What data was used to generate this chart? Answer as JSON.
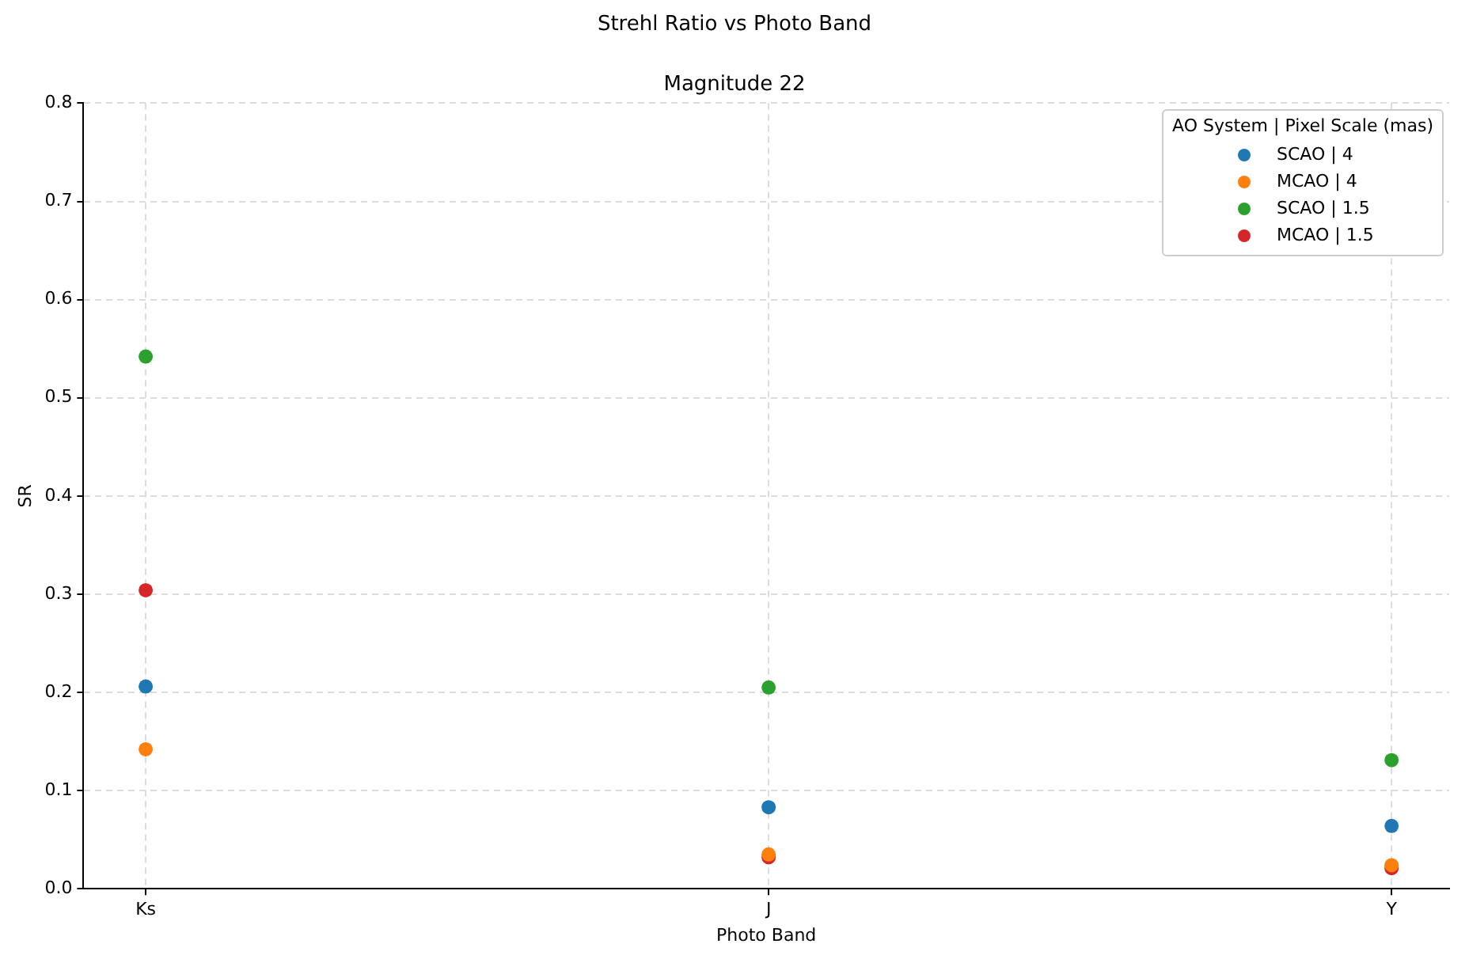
{
  "chart_data": {
    "type": "scatter",
    "title": "Strehl Ratio vs Photo Band",
    "subtitle": "Magnitude 22",
    "xlabel": "Photo Band",
    "ylabel": "SR",
    "categories": [
      "Ks",
      "J",
      "Y"
    ],
    "series": [
      {
        "name": "SCAO | 4",
        "color": "#1f77b4",
        "values": [
          0.206,
          0.083,
          0.064
        ]
      },
      {
        "name": "MCAO | 4",
        "color": "#ff7f0e",
        "values": [
          0.142,
          0.035,
          0.024
        ]
      },
      {
        "name": "SCAO | 1.5",
        "color": "#2ca02c",
        "values": [
          0.542,
          0.205,
          0.131
        ]
      },
      {
        "name": "MCAO | 1.5",
        "color": "#d62728",
        "values": [
          0.304,
          0.032,
          0.021
        ]
      }
    ],
    "legend_title": "AO System | Pixel Scale (mas)",
    "legend": "top right",
    "marker": "circle",
    "ylim": [
      0,
      0.8
    ],
    "yticks": [
      {
        "value": 0,
        "label": "0.0"
      },
      0.1,
      0.2,
      0.3,
      0.4,
      0.5,
      0.6,
      0.7,
      0.8
    ],
    "grid": true
  }
}
